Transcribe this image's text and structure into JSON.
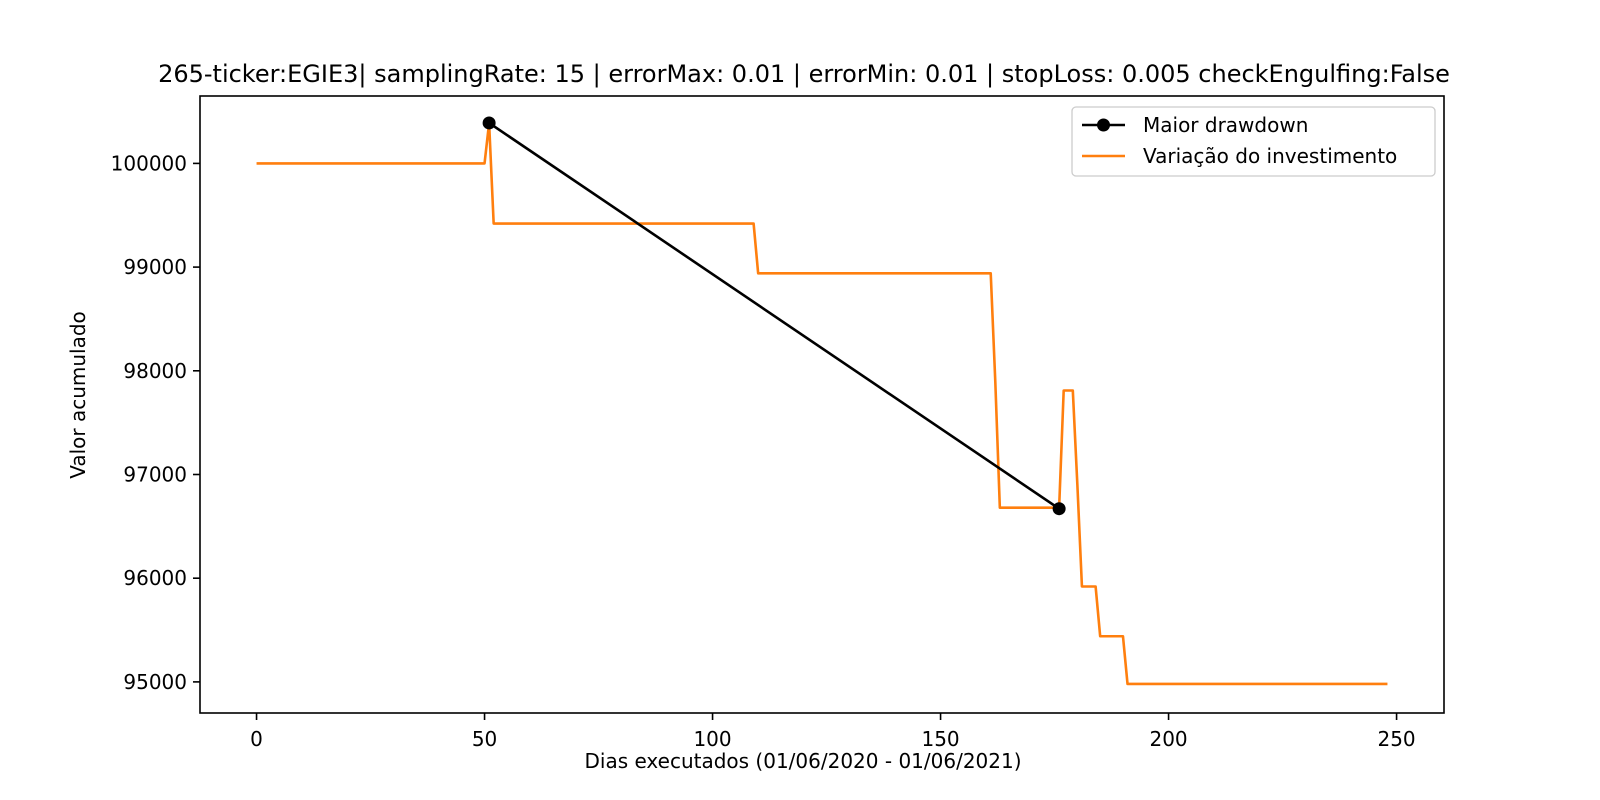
{
  "chart_data": {
    "type": "line",
    "title": "265-ticker:EGIE3| samplingRate: 15 | errorMax: 0.01 | errorMin: 0.01 | stopLoss: 0.005 checkEngulfing:False",
    "xlabel": "Dias executados (01/06/2020 - 01/06/2021)",
    "ylabel": "Valor acumulado",
    "xlim": [
      -12.4,
      260.4
    ],
    "ylim": [
      94700,
      100650
    ],
    "xticks": [
      0,
      50,
      100,
      150,
      200,
      250
    ],
    "yticks": [
      95000,
      96000,
      97000,
      98000,
      99000,
      100000
    ],
    "grid": false,
    "legend_position": "top-right",
    "series": [
      {
        "name": "Maior drawdown",
        "color": "#000000",
        "marker": "circle",
        "points": [
          [
            51,
            100390
          ],
          [
            176,
            96670
          ]
        ]
      },
      {
        "name": "Variação do investimento",
        "color": "#ff7f0e",
        "marker": "none",
        "points": [
          [
            0,
            100000
          ],
          [
            50,
            100000
          ],
          [
            51,
            100390
          ],
          [
            52,
            99420
          ],
          [
            109,
            99420
          ],
          [
            110,
            98940
          ],
          [
            161,
            98940
          ],
          [
            162,
            97900
          ],
          [
            163,
            96680
          ],
          [
            175,
            96680
          ],
          [
            176,
            96680
          ],
          [
            177,
            97810
          ],
          [
            179,
            97810
          ],
          [
            180,
            96900
          ],
          [
            181,
            95920
          ],
          [
            184,
            95920
          ],
          [
            185,
            95440
          ],
          [
            190,
            95440
          ],
          [
            191,
            94980
          ],
          [
            248,
            94980
          ]
        ]
      }
    ]
  }
}
